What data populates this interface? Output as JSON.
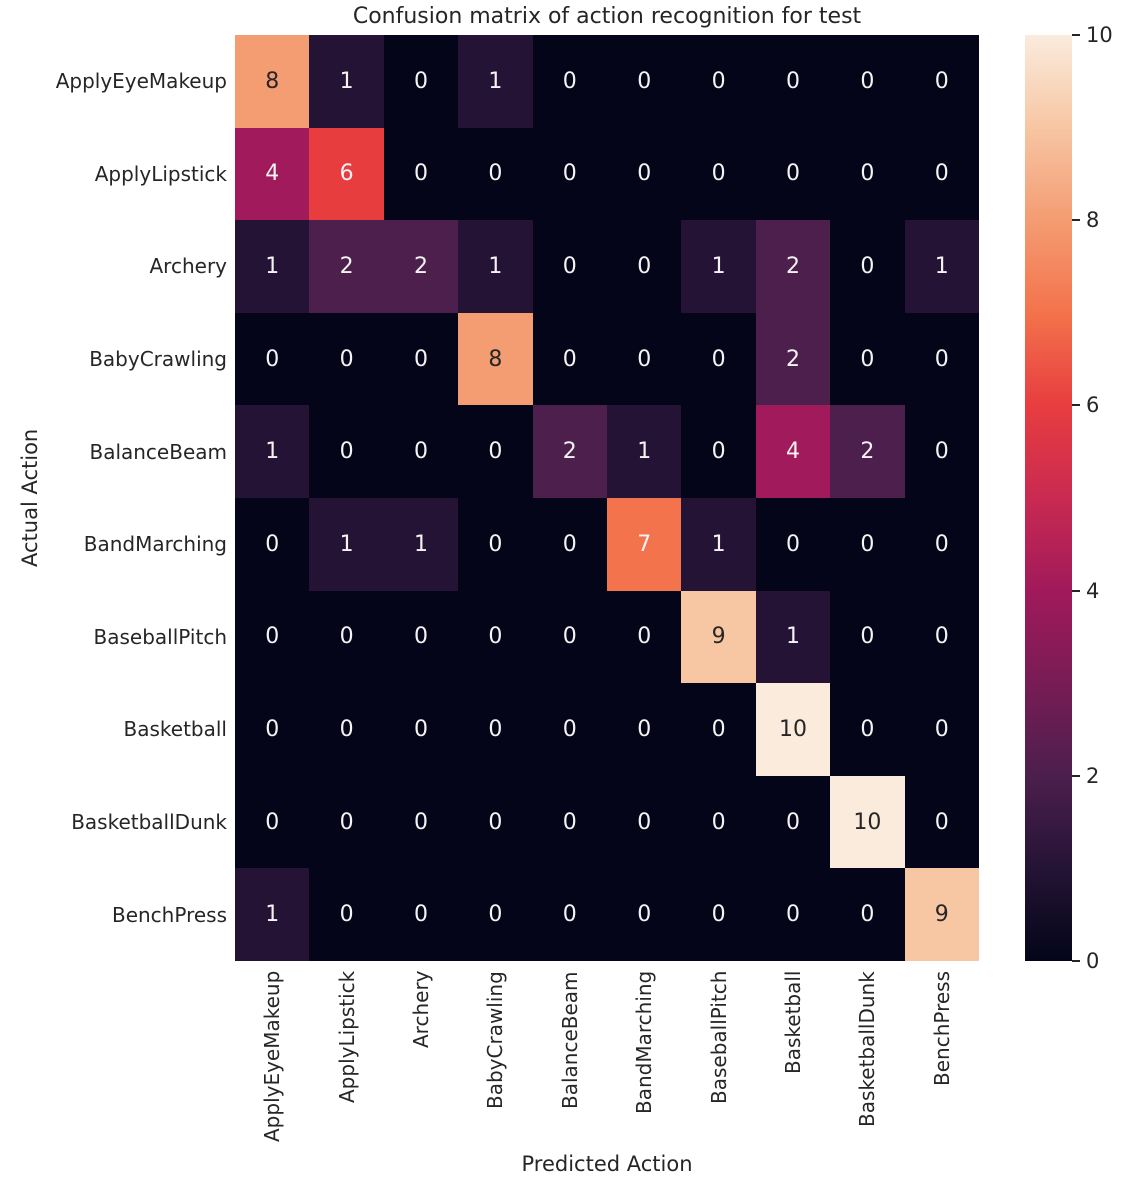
{
  "chart_data": {
    "type": "heatmap",
    "title": "Confusion matrix of action recognition for test",
    "xlabel": "Predicted Action",
    "ylabel": "Actual Action",
    "x_categories": [
      "ApplyEyeMakeup",
      "ApplyLipstick",
      "Archery",
      "BabyCrawling",
      "BalanceBeam",
      "BandMarching",
      "BaseballPitch",
      "Basketball",
      "BasketballDunk",
      "BenchPress"
    ],
    "y_categories": [
      "ApplyEyeMakeup",
      "ApplyLipstick",
      "Archery",
      "BabyCrawling",
      "BalanceBeam",
      "BandMarching",
      "BaseballPitch",
      "Basketball",
      "BasketballDunk",
      "BenchPress"
    ],
    "matrix": [
      [
        8,
        1,
        0,
        1,
        0,
        0,
        0,
        0,
        0,
        0
      ],
      [
        4,
        6,
        0,
        0,
        0,
        0,
        0,
        0,
        0,
        0
      ],
      [
        1,
        2,
        2,
        1,
        0,
        0,
        1,
        2,
        0,
        1
      ],
      [
        0,
        0,
        0,
        8,
        0,
        0,
        0,
        2,
        0,
        0
      ],
      [
        1,
        0,
        0,
        0,
        2,
        1,
        0,
        4,
        2,
        0
      ],
      [
        0,
        1,
        1,
        0,
        0,
        7,
        1,
        0,
        0,
        0
      ],
      [
        0,
        0,
        0,
        0,
        0,
        0,
        9,
        1,
        0,
        0
      ],
      [
        0,
        0,
        0,
        0,
        0,
        0,
        0,
        10,
        0,
        0
      ],
      [
        0,
        0,
        0,
        0,
        0,
        0,
        0,
        0,
        10,
        0
      ],
      [
        1,
        0,
        0,
        0,
        0,
        0,
        0,
        0,
        0,
        9
      ]
    ],
    "annotated": true,
    "vmin": 0,
    "vmax": 10,
    "colorbar_ticks": [
      0,
      2,
      4,
      6,
      8,
      10
    ],
    "colormap_name": "rocket",
    "legend_position": "right"
  },
  "colors": {
    "background": "#ffffff",
    "text": "#262626",
    "annotation_light": "#F5F3F3",
    "annotation_dark": "#262626",
    "value_colors": {
      "0": "#040519",
      "1": "#241335",
      "2": "#4C1F4D",
      "3": "#781C55",
      "4": "#A11A5B",
      "5": "#C92A51",
      "6": "#E83D3F",
      "7": "#F3734C",
      "8": "#F49C72",
      "9": "#F7C6A3",
      "10": "#FAEBDD"
    },
    "dark_text_threshold": 8
  }
}
